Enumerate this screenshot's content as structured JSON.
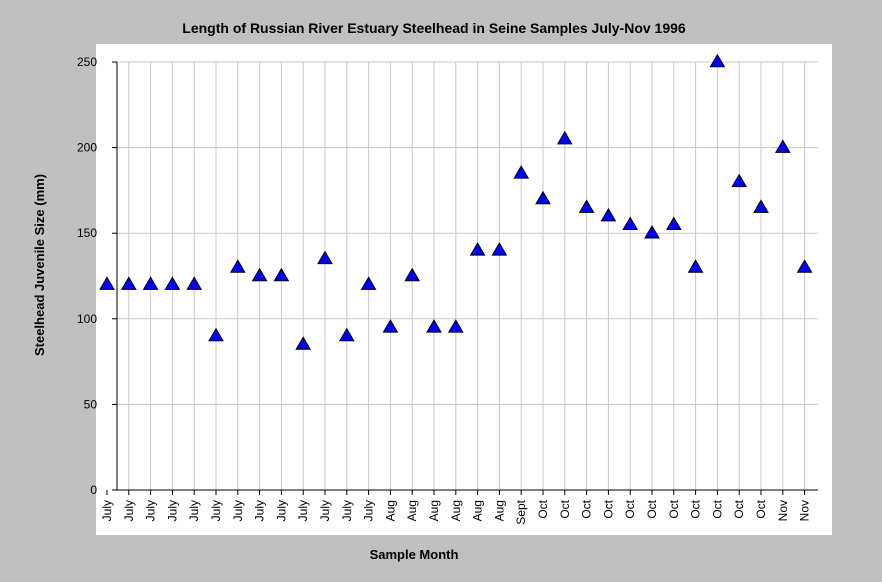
{
  "chart_data": {
    "type": "scatter",
    "title": "Length of Russian River Estuary Steelhead in Seine Samples July-Nov 1996",
    "xlabel": "Sample Month",
    "ylabel": "Steelhead Juvenile Size (mm)",
    "ylim": [
      0,
      250
    ],
    "yticks": [
      0,
      50,
      100,
      150,
      200,
      250
    ],
    "grid": true,
    "legend": "none",
    "marker": "triangle",
    "colors": {
      "marker_fill": "#0000ff",
      "marker_stroke": "#000000",
      "plot_background": "#ffffff",
      "page_background": "#c0c0c0",
      "grid": "#c8c8c8"
    },
    "categories": [
      "July",
      "July",
      "July",
      "July",
      "July",
      "July",
      "July",
      "July",
      "July",
      "July",
      "July",
      "July",
      "July",
      "Aug",
      "Aug",
      "Aug",
      "Aug",
      "Aug",
      "Aug",
      "Sept",
      "Oct",
      "Oct",
      "Oct",
      "Oct",
      "Oct",
      "Oct",
      "Oct",
      "Oct",
      "Oct",
      "Oct",
      "Oct",
      "Nov",
      "Nov"
    ],
    "values": [
      120,
      120,
      120,
      120,
      120,
      90,
      130,
      125,
      125,
      85,
      135,
      90,
      120,
      95,
      125,
      95,
      95,
      140,
      140,
      185,
      170,
      205,
      165,
      160,
      155,
      150,
      155,
      130,
      250,
      180,
      165,
      200,
      130
    ]
  }
}
